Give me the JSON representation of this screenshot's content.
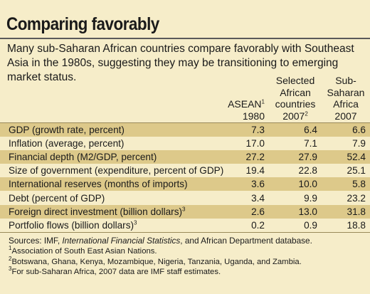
{
  "title": "Comparing favorably",
  "subtitle": "Many sub-Saharan African countries compare favorably with Southeast Asia in the 1980s, suggesting they may be transitioning to emerging market status.",
  "columns": [
    {
      "lines": [
        "ASEAN",
        "1980"
      ],
      "sup": "1"
    },
    {
      "lines": [
        "Selected",
        "African",
        "countries",
        "2007"
      ],
      "sup": "2"
    },
    {
      "lines": [
        "Sub-",
        "Saharan",
        "Africa",
        "2007"
      ],
      "sup": ""
    }
  ],
  "rows": [
    {
      "label": "GDP (growth rate, percent)",
      "sup": "",
      "values": [
        "7.3",
        "6.4",
        "6.6"
      ]
    },
    {
      "label": "Inflation (average, percent)",
      "sup": "",
      "values": [
        "17.0",
        "7.1",
        "7.9"
      ]
    },
    {
      "label": "Financial depth (M2/GDP, percent)",
      "sup": "",
      "values": [
        "27.2",
        "27.9",
        "52.4"
      ]
    },
    {
      "label": "Size of government (expenditure, percent of GDP)",
      "sup": "",
      "values": [
        "19.4",
        "22.8",
        "25.1"
      ]
    },
    {
      "label": "International reserves (months of imports)",
      "sup": "",
      "values": [
        "3.6",
        "10.0",
        "5.8"
      ]
    },
    {
      "label": "Debt (percent of GDP)",
      "sup": "",
      "values": [
        "3.4",
        "9.9",
        "23.2"
      ]
    },
    {
      "label": "Foreign direct investment (billion dollars)",
      "sup": "3",
      "values": [
        "2.6",
        "13.0",
        "31.8"
      ]
    },
    {
      "label": "Portfolio flows (billion dollars)",
      "sup": "3",
      "values": [
        "0.2",
        "0.9",
        "18.8"
      ]
    }
  ],
  "notes": {
    "sources_prefix": "Sources: IMF, ",
    "sources_italic": "International Financial Statistics",
    "sources_suffix": ", and African Department database.",
    "footnotes": [
      {
        "num": "1",
        "text": "Association of South East Asian Nations."
      },
      {
        "num": "2",
        "text": "Botswana, Ghana, Kenya, Mozambique, Nigeria, Tanzania, Uganda, and Zambia."
      },
      {
        "num": "3",
        "text": "For sub-Saharan Africa, 2007 data are IMF staff estimates."
      }
    ]
  },
  "colors": {
    "background": "#f6edc9",
    "shaded_row": "#ddc98a"
  }
}
